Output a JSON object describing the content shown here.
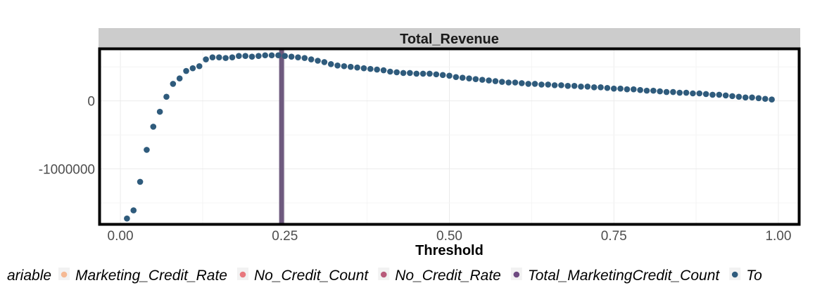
{
  "chart_data": {
    "type": "scatter",
    "facet_title": "Total_Revenue",
    "xlabel": "Threshold",
    "ylabel": "",
    "xlim": [
      -0.03,
      1.03
    ],
    "ylim": [
      -1800000,
      750000
    ],
    "x_ticks": [
      0.0,
      0.25,
      0.5,
      0.75,
      1.0
    ],
    "x_tick_labels": [
      "0.00",
      "0.25",
      "0.50",
      "0.75",
      "1.00"
    ],
    "y_ticks": [
      0,
      -1000000
    ],
    "y_tick_labels": [
      "0",
      "-1000000"
    ],
    "grid": true,
    "vline": {
      "x": 0.245,
      "color": "#6e5a7e"
    },
    "point_color": "#2f5b7c",
    "series": [
      {
        "name": "Total_Revenue",
        "x": [
          0.01,
          0.02,
          0.03,
          0.04,
          0.05,
          0.06,
          0.07,
          0.08,
          0.09,
          0.1,
          0.11,
          0.12,
          0.13,
          0.14,
          0.15,
          0.16,
          0.17,
          0.18,
          0.19,
          0.2,
          0.21,
          0.22,
          0.23,
          0.24,
          0.25,
          0.26,
          0.27,
          0.28,
          0.29,
          0.3,
          0.31,
          0.32,
          0.33,
          0.34,
          0.35,
          0.36,
          0.37,
          0.38,
          0.39,
          0.4,
          0.41,
          0.42,
          0.43,
          0.44,
          0.45,
          0.46,
          0.47,
          0.48,
          0.49,
          0.5,
          0.51,
          0.52,
          0.53,
          0.54,
          0.55,
          0.56,
          0.57,
          0.58,
          0.59,
          0.6,
          0.61,
          0.62,
          0.63,
          0.64,
          0.65,
          0.66,
          0.67,
          0.68,
          0.69,
          0.7,
          0.71,
          0.72,
          0.73,
          0.74,
          0.75,
          0.76,
          0.77,
          0.78,
          0.79,
          0.8,
          0.81,
          0.82,
          0.83,
          0.84,
          0.85,
          0.86,
          0.87,
          0.88,
          0.89,
          0.9,
          0.91,
          0.92,
          0.93,
          0.94,
          0.95,
          0.96,
          0.97,
          0.98,
          0.99
        ],
        "y": [
          -1730000,
          -1610000,
          -1190000,
          -720000,
          -380000,
          -160000,
          60000,
          250000,
          330000,
          440000,
          480000,
          510000,
          610000,
          640000,
          640000,
          630000,
          640000,
          660000,
          660000,
          650000,
          660000,
          670000,
          670000,
          670000,
          660000,
          650000,
          640000,
          630000,
          610000,
          590000,
          570000,
          540000,
          520000,
          510000,
          500000,
          490000,
          480000,
          470000,
          460000,
          450000,
          430000,
          420000,
          410000,
          410000,
          400000,
          400000,
          400000,
          390000,
          380000,
          370000,
          350000,
          340000,
          330000,
          320000,
          310000,
          300000,
          290000,
          280000,
          270000,
          270000,
          260000,
          250000,
          250000,
          240000,
          240000,
          230000,
          230000,
          220000,
          220000,
          210000,
          210000,
          200000,
          200000,
          190000,
          180000,
          180000,
          170000,
          170000,
          160000,
          150000,
          150000,
          140000,
          130000,
          130000,
          120000,
          120000,
          110000,
          110000,
          100000,
          90000,
          90000,
          80000,
          70000,
          60000,
          50000,
          50000,
          40000,
          30000,
          20000
        ]
      }
    ],
    "legend": {
      "position": "bottom",
      "title": "ariable",
      "items": [
        {
          "label": "Marketing_Credit_Rate",
          "color": "#f5b994"
        },
        {
          "label": "No_Credit_Count",
          "color": "#e8787e"
        },
        {
          "label": "No_Credit_Rate",
          "color": "#b85a7a"
        },
        {
          "label": "Total_MarketingCredit_Count",
          "color": "#6e4a80"
        },
        {
          "label": "To",
          "color": "#2f5b7c"
        }
      ]
    }
  }
}
